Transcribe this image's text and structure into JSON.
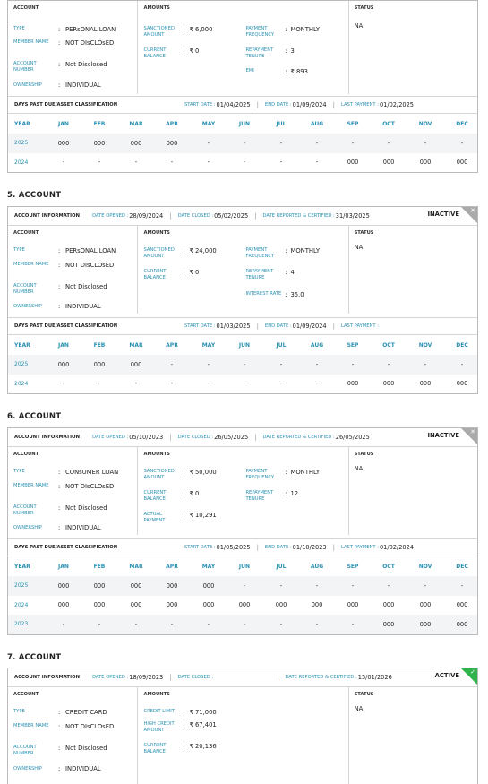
{
  "months": [
    "YEAR",
    "JAN",
    "FEB",
    "MAR",
    "APR",
    "MAY",
    "JUN",
    "JUL",
    "AUG",
    "SEP",
    "OCT",
    "NOV",
    "DEC"
  ],
  "labels": {
    "account_information": "ACCOUNT INFORMATION",
    "date_opened": "DATE OPENED :",
    "date_closed": "DATE CLOSED :",
    "date_reported": "DATE REPORTED & CERTIFIED :",
    "account": "ACCOUNT",
    "amounts": "AMOUNTS",
    "status": "STATUS",
    "type": "TYPE",
    "member_name": "MEMBER NAME",
    "account_number": "ACCOUNT NUMBER",
    "ownership": "OWNERSHIP",
    "sanctioned_amount": "SANCTIONED AMOUNT",
    "current_balance": "CURRENT BALANCE",
    "payment_frequency": "PAYMENT FREQUENCY",
    "repayment_tenure": "REPAYMENT TENURE",
    "emi": "EMI",
    "interest_rate": "INTEREST RATE",
    "actual_payment": "ACTUAL PAYMENT",
    "credit_limit": "CREDIT LIMIT",
    "high_credit_amount": "HIGH CREDIT AMOUNT",
    "dpd_title": "DAYS PAST DUE/ASSET CLASSIFICATION",
    "start_date": "START DATE :",
    "end_date": "END DATE :",
    "last_payment": "LAST PAYMENT :",
    "colon": ":"
  },
  "acct4": {
    "type": "PERsONAL LOAN",
    "member_name": "NOT DIsCLOsED",
    "account_number": "Not Disclosed",
    "ownership": "INDIVIDUAL",
    "sanctioned_amount": "₹ 6,000",
    "current_balance": "₹ 0",
    "payment_frequency": "MONTHLY",
    "repayment_tenure": "3",
    "emi": "₹ 893",
    "status": "NA",
    "start_date": "01/04/2025",
    "end_date": "01/09/2024",
    "last_payment": "01/02/2025",
    "grid": [
      {
        "year": "2025",
        "cells": [
          "000",
          "000",
          "000",
          "000",
          "-",
          "-",
          "-",
          "-",
          "-",
          "-",
          "-",
          "-"
        ]
      },
      {
        "year": "2024",
        "cells": [
          "-",
          "-",
          "-",
          "-",
          "-",
          "-",
          "-",
          "-",
          "000",
          "000",
          "000",
          "000"
        ]
      }
    ]
  },
  "acct5": {
    "heading": "5. ACCOUNT",
    "date_opened": "28/09/2024",
    "date_closed": "05/02/2025",
    "date_reported": "31/03/2025",
    "badge": "INACTIVE",
    "type": "PERsONAL LOAN",
    "member_name": "NOT DIsCLOsED",
    "account_number": "Not Disclosed",
    "ownership": "INDIVIDUAL",
    "sanctioned_amount": "₹ 24,000",
    "current_balance": "₹ 0",
    "payment_frequency": "MONTHLY",
    "repayment_tenure": "4",
    "interest_rate": "35.0",
    "status": "NA",
    "start_date": "01/03/2025",
    "end_date": "01/09/2024",
    "last_payment": "",
    "grid": [
      {
        "year": "2025",
        "cells": [
          "000",
          "000",
          "000",
          "-",
          "-",
          "-",
          "-",
          "-",
          "-",
          "-",
          "-",
          "-"
        ]
      },
      {
        "year": "2024",
        "cells": [
          "-",
          "-",
          "-",
          "-",
          "-",
          "-",
          "-",
          "-",
          "000",
          "000",
          "000",
          "000"
        ]
      }
    ]
  },
  "acct6": {
    "heading": "6. ACCOUNT",
    "date_opened": "05/10/2023",
    "date_closed": "26/05/2025",
    "date_reported": "26/05/2025",
    "badge": "INACTIVE",
    "type": "CONsUMER LOAN",
    "member_name": "NOT DIsCLOsED",
    "account_number": "Not Disclosed",
    "ownership": "INDIVIDUAL",
    "sanctioned_amount": "₹ 50,000",
    "current_balance": "₹ 0",
    "actual_payment": "₹ 10,291",
    "payment_frequency": "MONTHLY",
    "repayment_tenure": "12",
    "status": "NA",
    "start_date": "01/05/2025",
    "end_date": "01/10/2023",
    "last_payment": "01/02/2024",
    "grid": [
      {
        "year": "2025",
        "cells": [
          "000",
          "000",
          "000",
          "000",
          "000",
          "-",
          "-",
          "-",
          "-",
          "-",
          "-",
          "-"
        ]
      },
      {
        "year": "2024",
        "cells": [
          "000",
          "000",
          "000",
          "000",
          "000",
          "000",
          "000",
          "000",
          "000",
          "000",
          "000",
          "000"
        ]
      },
      {
        "year": "2023",
        "cells": [
          "-",
          "-",
          "-",
          "-",
          "-",
          "-",
          "-",
          "-",
          "-",
          "000",
          "000",
          "000"
        ]
      }
    ]
  },
  "acct7": {
    "heading": "7. ACCOUNT",
    "date_opened": "18/09/2023",
    "date_closed": "",
    "date_reported": "15/01/2026",
    "badge": "ACTIVE",
    "type": "CREDIT CARD",
    "member_name": "NOT DIsCLOsED",
    "account_number": "Not Disclosed",
    "ownership": "INDIVIDUAL",
    "credit_limit": "₹ 71,000",
    "high_credit_amount": "₹ 67,401",
    "current_balance": "₹ 20,136",
    "status": "NA"
  },
  "icons": {
    "inactive_corner": "close-icon",
    "active_corner": "check-icon"
  },
  "colors": {
    "label_blue": "#2a91b3",
    "inactive_grey": "#aaaaaa",
    "active_green": "#2fb34a"
  }
}
